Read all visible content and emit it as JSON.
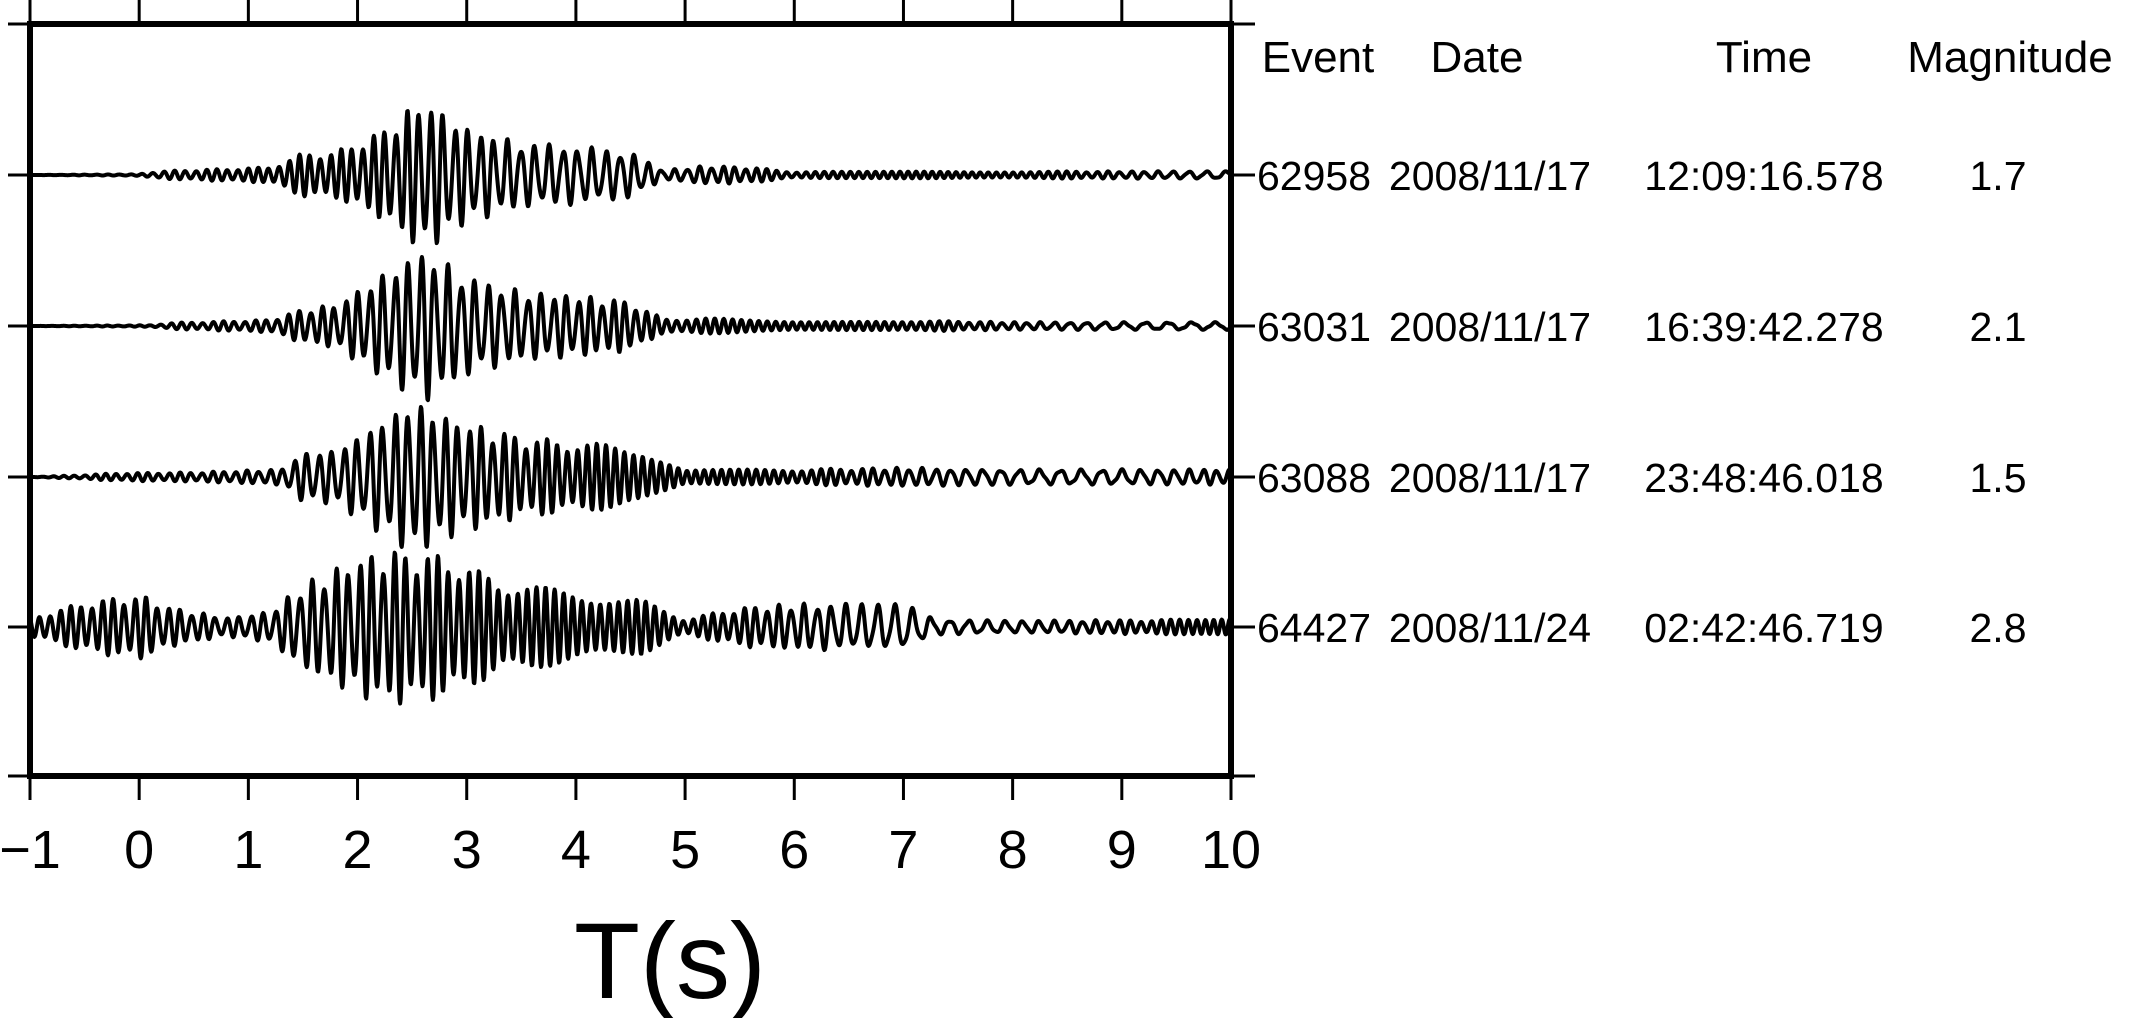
{
  "chart_data": {
    "type": "line",
    "title": "",
    "xlabel": "T(s)",
    "ylabel": "",
    "xlim": [
      -1,
      10
    ],
    "x_ticks": [
      "−1",
      "0",
      "1",
      "2",
      "3",
      "4",
      "5",
      "6",
      "7",
      "8",
      "9",
      "10"
    ],
    "grid": false,
    "table": {
      "headers": [
        "Event",
        "Date",
        "Time",
        "Magnitude"
      ],
      "rows": [
        [
          "62958",
          "2008/11/17",
          "12:09:16.578",
          "1.7"
        ],
        [
          "63031",
          "2008/11/17",
          "16:39:42.278",
          "2.1"
        ],
        [
          "63088",
          "2008/11/17",
          "23:48:46.018",
          "1.5"
        ],
        [
          "64427",
          "2008/11/24",
          "02:42:46.719",
          "2.8"
        ]
      ]
    },
    "series": [
      {
        "envelope": [
          [
            -1.0,
            0.0
          ],
          [
            0.0,
            0.01
          ],
          [
            0.2,
            0.05
          ],
          [
            0.8,
            0.08
          ],
          [
            1.2,
            0.1
          ],
          [
            1.5,
            0.28
          ],
          [
            1.8,
            0.3
          ],
          [
            2.2,
            0.55
          ],
          [
            2.6,
            1.0
          ],
          [
            3.0,
            0.62
          ],
          [
            3.5,
            0.42
          ],
          [
            4.0,
            0.38
          ],
          [
            4.5,
            0.3
          ],
          [
            4.8,
            0.06
          ],
          [
            5.2,
            0.12
          ],
          [
            5.6,
            0.1
          ],
          [
            6.0,
            0.04
          ],
          [
            10.0,
            0.05
          ]
        ]
      },
      {
        "envelope": [
          [
            -1.0,
            0.0
          ],
          [
            0.1,
            0.01
          ],
          [
            0.3,
            0.04
          ],
          [
            1.2,
            0.08
          ],
          [
            1.5,
            0.22
          ],
          [
            1.8,
            0.28
          ],
          [
            2.2,
            0.65
          ],
          [
            2.6,
            1.0
          ],
          [
            3.0,
            0.65
          ],
          [
            3.5,
            0.45
          ],
          [
            4.0,
            0.4
          ],
          [
            4.5,
            0.32
          ],
          [
            4.8,
            0.09
          ],
          [
            5.2,
            0.1
          ],
          [
            6.0,
            0.06
          ],
          [
            7.0,
            0.07
          ],
          [
            8.0,
            0.05
          ],
          [
            10.0,
            0.05
          ]
        ]
      },
      {
        "envelope": [
          [
            -1.0,
            0.0
          ],
          [
            -0.6,
            0.02
          ],
          [
            -0.2,
            0.05
          ],
          [
            0.5,
            0.06
          ],
          [
            1.3,
            0.1
          ],
          [
            1.5,
            0.32
          ],
          [
            1.8,
            0.35
          ],
          [
            2.2,
            0.72
          ],
          [
            2.5,
            1.0
          ],
          [
            2.9,
            0.75
          ],
          [
            3.5,
            0.52
          ],
          [
            4.0,
            0.45
          ],
          [
            4.6,
            0.38
          ],
          [
            5.0,
            0.09
          ],
          [
            6.0,
            0.1
          ],
          [
            7.0,
            0.12
          ],
          [
            8.0,
            0.1
          ],
          [
            10.0,
            0.1
          ]
        ]
      },
      {
        "envelope": [
          [
            -1.0,
            0.12
          ],
          [
            -0.5,
            0.32
          ],
          [
            0.0,
            0.42
          ],
          [
            0.3,
            0.25
          ],
          [
            0.8,
            0.12
          ],
          [
            1.2,
            0.2
          ],
          [
            1.5,
            0.55
          ],
          [
            2.0,
            0.9
          ],
          [
            2.3,
            1.0
          ],
          [
            2.8,
            0.92
          ],
          [
            3.3,
            0.6
          ],
          [
            4.0,
            0.45
          ],
          [
            4.6,
            0.35
          ],
          [
            5.0,
            0.1
          ],
          [
            5.5,
            0.25
          ],
          [
            6.0,
            0.3
          ],
          [
            7.0,
            0.3
          ],
          [
            7.3,
            0.1
          ],
          [
            8.0,
            0.08
          ],
          [
            10.0,
            0.1
          ]
        ]
      }
    ]
  }
}
